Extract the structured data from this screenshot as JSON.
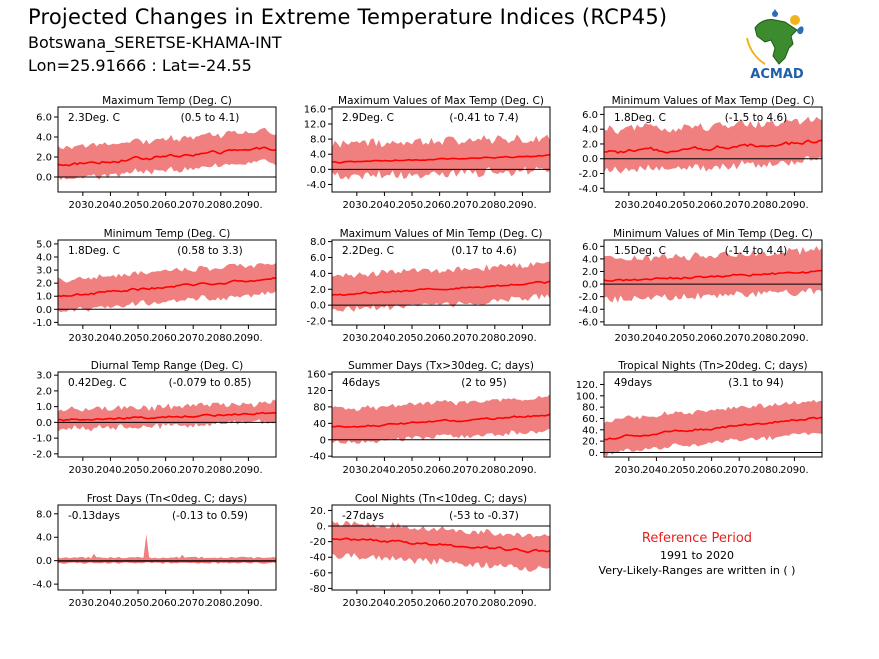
{
  "header": {
    "title": "Projected Changes in Extreme Temperature Indices (RCP45)",
    "subtitle": "Botswana_SERETSE-KHAMA-INT",
    "coords": "Lon=25.91666 : Lat=-24.55"
  },
  "logo": {
    "text": "ACMAD",
    "icon": "africa-map-logo-icon"
  },
  "reference": {
    "title": "Reference Period",
    "years": "1991 to 2020",
    "note": "Very-Likely-Ranges are written in ( )"
  },
  "colors": {
    "band": "#f08080",
    "line": "#ff0000",
    "zero": "#000000",
    "ref_title": "#e8201c"
  },
  "chart_data": [
    {
      "type": "area",
      "title": "Maximum Temp (Deg. C)",
      "value_label": "2.3Deg. C",
      "range_label": "(0.5 to 4.1)",
      "xlim": [
        2021,
        2100
      ],
      "ylim": [
        -1.5,
        7.0
      ],
      "yticks": [
        0.0,
        2.0,
        4.0,
        6.0
      ],
      "ytick_labels": [
        "0.0",
        "2.0",
        "4.0",
        "6.0"
      ],
      "xticks": [
        2030,
        2040,
        2050,
        2060,
        2070,
        2080,
        2090
      ],
      "xtick_labels": [
        "2030.",
        "2040.",
        "2050.",
        "2060.",
        "2070.",
        "2080.",
        "2090."
      ],
      "trend_start": 1.2,
      "trend_end": 2.9,
      "line_noise": 0.35,
      "band_low": 1.1,
      "band_high": 1.5,
      "band_var": 0.5
    },
    {
      "type": "area",
      "title": "Maximum Values of Max Temp (Deg. C)",
      "value_label": "2.9Deg. C",
      "range_label": "(-0.41 to 7.4)",
      "xlim": [
        2021,
        2100
      ],
      "ylim": [
        -6.0,
        16.5
      ],
      "yticks": [
        -4.0,
        0.0,
        4.0,
        8.0,
        12.0,
        16.0
      ],
      "ytick_labels": [
        "-4.0",
        "0.0",
        "4.0",
        "8.0",
        "12.0",
        "16.0"
      ],
      "xticks": [
        2030,
        2040,
        2050,
        2060,
        2070,
        2080,
        2090
      ],
      "xtick_labels": [
        "2030.",
        "2040.",
        "2050.",
        "2060.",
        "2070.",
        "2080.",
        "2090."
      ],
      "trend_start": 1.8,
      "trend_end": 3.6,
      "line_noise": 0.4,
      "band_low": 2.5,
      "band_high": 3.5,
      "band_var": 2.5
    },
    {
      "type": "area",
      "title": "Minimum Values of Max Temp (Deg. C)",
      "value_label": "1.8Deg. C",
      "range_label": "(-1.5 to 4.6)",
      "xlim": [
        2021,
        2100
      ],
      "ylim": [
        -4.5,
        7.0
      ],
      "yticks": [
        -4.0,
        -2.0,
        0.0,
        2.0,
        4.0,
        6.0
      ],
      "ytick_labels": [
        "-4.0",
        "-2.0",
        "0.0",
        "2.0",
        "4.0",
        "6.0"
      ],
      "xticks": [
        2030,
        2040,
        2050,
        2060,
        2070,
        2080,
        2090
      ],
      "xtick_labels": [
        "2030.",
        "2040.",
        "2050.",
        "2060.",
        "2070.",
        "2080.",
        "2090."
      ],
      "trend_start": 0.8,
      "trend_end": 2.3,
      "line_noise": 0.6,
      "band_low": 2.0,
      "band_high": 2.5,
      "band_var": 1.0
    },
    {
      "type": "area",
      "title": "Minimum Temp (Deg. C)",
      "value_label": "1.8Deg. C",
      "range_label": "(0.58 to 3.3)",
      "xlim": [
        2021,
        2100
      ],
      "ylim": [
        -1.2,
        5.3
      ],
      "yticks": [
        -1.0,
        0.0,
        1.0,
        2.0,
        3.0,
        4.0,
        5.0
      ],
      "ytick_labels": [
        "-1.0",
        "0.0",
        "1.0",
        "2.0",
        "3.0",
        "4.0",
        "5.0"
      ],
      "xticks": [
        2030,
        2040,
        2050,
        2060,
        2070,
        2080,
        2090
      ],
      "xtick_labels": [
        "2030.",
        "2040.",
        "2050.",
        "2060.",
        "2070.",
        "2080.",
        "2090."
      ],
      "trend_start": 1.0,
      "trend_end": 2.4,
      "line_noise": 0.2,
      "band_low": 0.9,
      "band_high": 1.0,
      "band_var": 0.4
    },
    {
      "type": "area",
      "title": "Maximum Values of Min Temp (Deg. C)",
      "value_label": "2.2Deg. C",
      "range_label": "(0.17 to 4.6)",
      "xlim": [
        2021,
        2100
      ],
      "ylim": [
        -2.5,
        8.2
      ],
      "yticks": [
        -2.0,
        0.0,
        2.0,
        4.0,
        6.0,
        8.0
      ],
      "ytick_labels": [
        "-2.0",
        "0.0",
        "2.0",
        "4.0",
        "6.0",
        "8.0"
      ],
      "xticks": [
        2030,
        2040,
        2050,
        2060,
        2070,
        2080,
        2090
      ],
      "xtick_labels": [
        "2030.",
        "2040.",
        "2050.",
        "2060.",
        "2070.",
        "2080.",
        "2090."
      ],
      "trend_start": 1.2,
      "trend_end": 2.9,
      "line_noise": 0.3,
      "band_low": 1.5,
      "band_high": 2.0,
      "band_var": 0.8
    },
    {
      "type": "area",
      "title": "Minimum Values of Min Temp (Deg. C)",
      "value_label": "1.5Deg. C",
      "range_label": "(-1.4 to 4.4)",
      "xlim": [
        2021,
        2100
      ],
      "ylim": [
        -6.5,
        7.0
      ],
      "yticks": [
        -6.0,
        -4.0,
        -2.0,
        0.0,
        2.0,
        4.0,
        6.0
      ],
      "ytick_labels": [
        "-6.0",
        "-4.0",
        "-2.0",
        "0.0",
        "2.0",
        "4.0",
        "6.0"
      ],
      "xticks": [
        2030,
        2040,
        2050,
        2060,
        2070,
        2080,
        2090
      ],
      "xtick_labels": [
        "2030.",
        "2040.",
        "2050.",
        "2060.",
        "2070.",
        "2080.",
        "2090."
      ],
      "trend_start": 0.5,
      "trend_end": 2.0,
      "line_noise": 0.4,
      "band_low": 2.5,
      "band_high": 2.8,
      "band_var": 1.2
    },
    {
      "type": "area",
      "title": "Diurnal Temp Range (Deg. C)",
      "value_label": "0.42Deg. C",
      "range_label": "(-0.079 to 0.85)",
      "xlim": [
        2021,
        2100
      ],
      "ylim": [
        -2.2,
        3.2
      ],
      "yticks": [
        -2.0,
        -1.0,
        0.0,
        1.0,
        2.0,
        3.0
      ],
      "ytick_labels": [
        "-2.0",
        "-1.0",
        "0.0",
        "1.0",
        "2.0",
        "3.0"
      ],
      "xticks": [
        2030,
        2040,
        2050,
        2060,
        2070,
        2080,
        2090
      ],
      "xtick_labels": [
        "2030.",
        "2040.",
        "2050.",
        "2060.",
        "2070.",
        "2080.",
        "2090."
      ],
      "trend_start": 0.1,
      "trend_end": 0.6,
      "line_noise": 0.15,
      "band_low": 0.35,
      "band_high": 0.45,
      "band_var": 0.4
    },
    {
      "type": "area",
      "title": "Summer Days (Tx>30deg. C; days)",
      "value_label": "46days",
      "range_label": "(2 to 95)",
      "xlim": [
        2021,
        2100
      ],
      "ylim": [
        -42,
        165
      ],
      "yticks": [
        -40,
        0,
        40,
        80,
        120,
        160
      ],
      "ytick_labels": [
        "-40",
        "0",
        "40",
        "80",
        "120",
        "160"
      ],
      "xticks": [
        2030,
        2040,
        2050,
        2060,
        2070,
        2080,
        2090
      ],
      "xtick_labels": [
        "2030.",
        "2040.",
        "2050.",
        "2060.",
        "2070.",
        "2080.",
        "2090."
      ],
      "trend_start": 30,
      "trend_end": 60,
      "line_noise": 6,
      "band_low": 32,
      "band_high": 38,
      "band_var": 12
    },
    {
      "type": "area",
      "title": "Tropical Nights (Tn>20deg. C; days)",
      "value_label": "49days",
      "range_label": "(3.1 to 94)",
      "xlim": [
        2021,
        2100
      ],
      "ylim": [
        -8,
        142
      ],
      "yticks": [
        0,
        20,
        40,
        60,
        80,
        100,
        120
      ],
      "ytick_labels": [
        "0.",
        "20.",
        "40.",
        "60.",
        "80.",
        "100.",
        "120."
      ],
      "xticks": [
        2030,
        2040,
        2050,
        2060,
        2070,
        2080,
        2090
      ],
      "xtick_labels": [
        "2030.",
        "2040.",
        "2050.",
        "2060.",
        "2070.",
        "2080.",
        "2090."
      ],
      "trend_start": 25,
      "trend_end": 62,
      "line_noise": 5,
      "band_low": 22,
      "band_high": 28,
      "band_var": 8
    },
    {
      "type": "area",
      "title": "Frost Days (Tn<0deg. C; days)",
      "value_label": "-0.13days",
      "range_label": "(-0.13 to 0.59)",
      "xlim": [
        2021,
        2100
      ],
      "ylim": [
        -5.0,
        9.5
      ],
      "yticks": [
        -4.0,
        0.0,
        4.0,
        8.0
      ],
      "ytick_labels": [
        "-4.0",
        "0.0",
        "4.0",
        "8.0"
      ],
      "xticks": [
        2030,
        2040,
        2050,
        2060,
        2070,
        2080,
        2090
      ],
      "xtick_labels": [
        "2030.",
        "2040.",
        "2050.",
        "2060.",
        "2070.",
        "2080.",
        "2090."
      ],
      "trend_start": -0.1,
      "trend_end": -0.1,
      "line_noise": 0.02,
      "band_low": 0.15,
      "band_high": 0.5,
      "band_var": 0.3
    },
    {
      "type": "area",
      "title": "Cool Nights (Tn<10deg. C; days)",
      "value_label": "-27days",
      "range_label": "(-53 to -0.37)",
      "xlim": [
        2021,
        2100
      ],
      "ylim": [
        -82,
        27
      ],
      "yticks": [
        -80,
        -60,
        -40,
        -20,
        0,
        20
      ],
      "ytick_labels": [
        "-80",
        "-60",
        "-40",
        "-20",
        "0.",
        "20."
      ],
      "xticks": [
        2030,
        2040,
        2050,
        2060,
        2070,
        2080,
        2090
      ],
      "xtick_labels": [
        "2030.",
        "2040.",
        "2050.",
        "2060.",
        "2070.",
        "2080.",
        "2090."
      ],
      "trend_start": -15,
      "trend_end": -33,
      "line_noise": 4,
      "band_low": 18,
      "band_high": 16,
      "band_var": 8
    }
  ]
}
